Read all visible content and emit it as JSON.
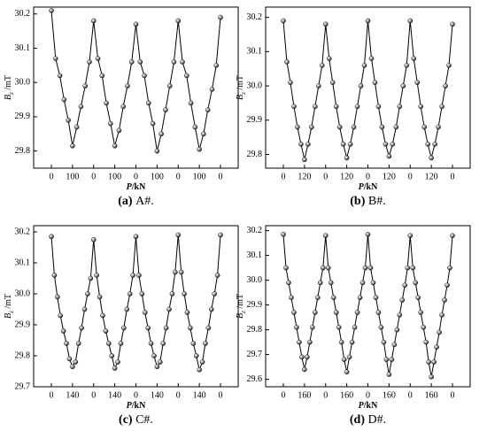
{
  "chart_data": [
    {
      "type": "line",
      "caption": {
        "label": "(a)",
        "text": "A#."
      },
      "xlabel": {
        "symbol": "P",
        "unit": "/kN"
      },
      "ylabel": {
        "symbol": "B",
        "subscript": "z",
        "unit": " /mT"
      },
      "categories": [
        "0",
        null,
        null,
        null,
        null,
        "100",
        null,
        null,
        null,
        null,
        "0",
        null,
        null,
        null,
        null,
        "100",
        null,
        null,
        null,
        null,
        "0",
        null,
        null,
        null,
        null,
        "100",
        null,
        null,
        null,
        null,
        "0",
        null,
        null,
        null,
        null,
        "100",
        null,
        null,
        null,
        null,
        "0"
      ],
      "series": [
        {
          "color": "#000000",
          "values": [
            30.21,
            30.07,
            30.02,
            29.95,
            29.89,
            29.815,
            29.87,
            29.93,
            29.99,
            30.06,
            30.18,
            30.07,
            30.02,
            29.94,
            29.88,
            29.815,
            29.86,
            29.93,
            29.99,
            30.06,
            30.17,
            30.06,
            30.02,
            29.94,
            29.88,
            29.8,
            29.85,
            29.92,
            29.99,
            30.06,
            30.18,
            30.06,
            30.02,
            29.94,
            29.87,
            29.805,
            29.85,
            29.92,
            29.98,
            30.05,
            30.19
          ]
        }
      ],
      "ylim": [
        29.75,
        30.22
      ],
      "yticks": [
        29.8,
        29.9,
        {
          "value": 30.0,
          "label": "30.0"
        },
        30.1,
        30.2
      ]
    },
    {
      "type": "line",
      "caption": {
        "label": "(b)",
        "text": "B#."
      },
      "xlabel": {
        "symbol": "P",
        "unit": "/kN"
      },
      "ylabel": {
        "symbol": "B",
        "subscript": "z",
        "unit": " /mT"
      },
      "categories": [
        "0",
        null,
        null,
        null,
        null,
        null,
        "120",
        null,
        null,
        null,
        null,
        null,
        "0",
        null,
        null,
        null,
        null,
        null,
        "120",
        null,
        null,
        null,
        null,
        null,
        "0",
        null,
        null,
        null,
        null,
        null,
        "120",
        null,
        null,
        null,
        null,
        null,
        "0",
        null,
        null,
        null,
        null,
        null,
        "120",
        null,
        null,
        null,
        null,
        null,
        "0"
      ],
      "series": [
        {
          "color": "#000000",
          "values": [
            30.19,
            30.07,
            30.01,
            29.94,
            29.88,
            29.83,
            29.785,
            29.83,
            29.88,
            29.94,
            30.0,
            30.06,
            30.18,
            30.08,
            30.01,
            29.94,
            29.88,
            29.83,
            29.79,
            29.83,
            29.88,
            29.94,
            30.0,
            30.06,
            30.19,
            30.08,
            30.01,
            29.94,
            29.88,
            29.83,
            29.795,
            29.83,
            29.88,
            29.94,
            30.0,
            30.06,
            30.19,
            30.08,
            30.01,
            29.94,
            29.88,
            29.83,
            29.79,
            29.83,
            29.88,
            29.94,
            30.0,
            30.06,
            30.18
          ]
        }
      ],
      "ylim": [
        29.76,
        30.23
      ],
      "yticks": [
        29.8,
        29.9,
        {
          "value": 30.0,
          "label": "30.0"
        },
        30.1,
        30.2
      ]
    },
    {
      "type": "line",
      "caption": {
        "label": "(c)",
        "text": "C#."
      },
      "xlabel": {
        "symbol": "P",
        "unit": "/kN"
      },
      "ylabel": {
        "symbol": "B",
        "subscript": "z",
        "unit": " /mT"
      },
      "categories": [
        "0",
        null,
        null,
        null,
        null,
        null,
        null,
        "140",
        null,
        null,
        null,
        null,
        null,
        null,
        "0",
        null,
        null,
        null,
        null,
        null,
        null,
        "140",
        null,
        null,
        null,
        null,
        null,
        null,
        "0",
        null,
        null,
        null,
        null,
        null,
        null,
        "140",
        null,
        null,
        null,
        null,
        null,
        null,
        "0",
        null,
        null,
        null,
        null,
        null,
        null,
        "140",
        null,
        null,
        null,
        null,
        null,
        null,
        "0"
      ],
      "series": [
        {
          "color": "#000000",
          "values": [
            30.185,
            30.06,
            29.99,
            29.93,
            29.88,
            29.84,
            29.79,
            29.765,
            29.78,
            29.84,
            29.89,
            29.95,
            30.0,
            30.05,
            30.175,
            30.06,
            29.99,
            29.93,
            29.88,
            29.84,
            29.8,
            29.76,
            29.78,
            29.84,
            29.89,
            29.95,
            30.0,
            30.06,
            30.185,
            30.06,
            30.0,
            29.94,
            29.89,
            29.84,
            29.8,
            29.765,
            29.78,
            29.84,
            29.89,
            29.95,
            30.0,
            30.07,
            30.19,
            30.07,
            30.0,
            29.94,
            29.89,
            29.84,
            29.8,
            29.755,
            29.78,
            29.84,
            29.89,
            29.95,
            30.0,
            30.06,
            30.19
          ]
        }
      ],
      "ylim": [
        29.7,
        30.22
      ],
      "yticks": [
        29.7,
        29.8,
        29.9,
        {
          "value": 30.0,
          "label": "30.0"
        },
        30.1,
        30.2
      ]
    },
    {
      "type": "line",
      "caption": {
        "label": "(d)",
        "text": "D#."
      },
      "xlabel": {
        "symbol": "P",
        "unit": "/kN"
      },
      "ylabel": {
        "symbol": "B",
        "subscript": "z",
        "unit": " /mT"
      },
      "categories": [
        "0",
        null,
        null,
        null,
        null,
        null,
        null,
        null,
        "160",
        null,
        null,
        null,
        null,
        null,
        null,
        null,
        "0",
        null,
        null,
        null,
        null,
        null,
        null,
        null,
        "160",
        null,
        null,
        null,
        null,
        null,
        null,
        null,
        "0",
        null,
        null,
        null,
        null,
        null,
        null,
        null,
        "160",
        null,
        null,
        null,
        null,
        null,
        null,
        null,
        "0",
        null,
        null,
        null,
        null,
        null,
        null,
        null,
        "160",
        null,
        null,
        null,
        null,
        null,
        null,
        null,
        "0"
      ],
      "series": [
        {
          "color": "#000000",
          "values": [
            30.185,
            30.05,
            29.99,
            29.93,
            29.87,
            29.81,
            29.75,
            29.69,
            29.64,
            29.69,
            29.75,
            29.81,
            29.87,
            29.93,
            29.99,
            30.05,
            30.18,
            30.05,
            29.99,
            29.93,
            29.87,
            29.81,
            29.75,
            29.68,
            29.63,
            29.69,
            29.75,
            29.81,
            29.87,
            29.93,
            29.99,
            30.05,
            30.185,
            30.05,
            29.99,
            29.93,
            29.87,
            29.81,
            29.75,
            29.68,
            29.62,
            29.68,
            29.74,
            29.8,
            29.86,
            29.92,
            29.98,
            30.05,
            30.18,
            30.05,
            29.99,
            29.93,
            29.87,
            29.81,
            29.75,
            29.67,
            29.61,
            29.67,
            29.73,
            29.79,
            29.86,
            29.92,
            29.98,
            30.05,
            30.18
          ]
        }
      ],
      "ylim": [
        29.57,
        30.22
      ],
      "yticks": [
        29.6,
        29.7,
        29.8,
        29.9,
        {
          "value": 30.0,
          "label": "30.0"
        },
        30.1,
        30.2
      ]
    }
  ]
}
